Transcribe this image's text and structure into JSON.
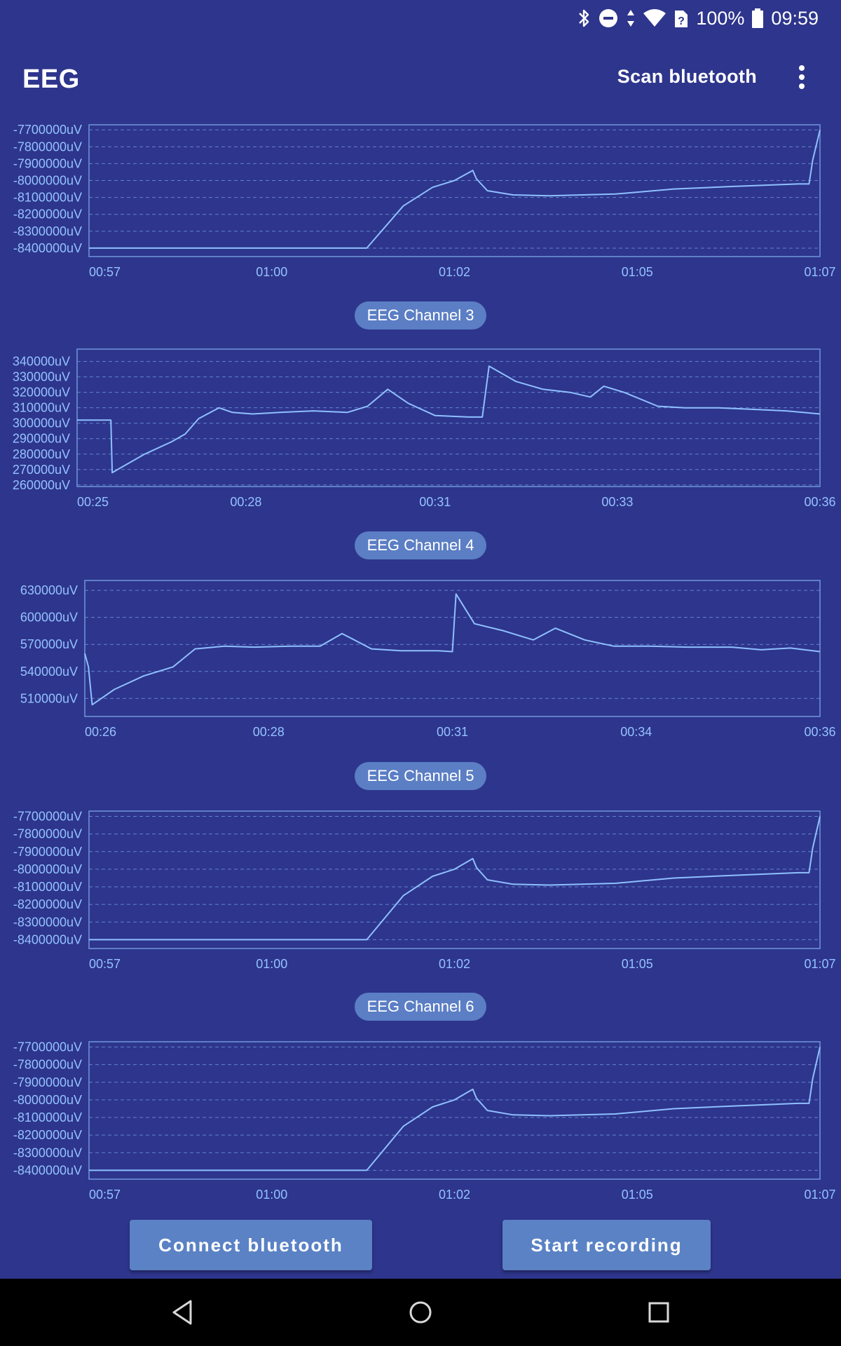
{
  "status_bar": {
    "battery_percent": "100%",
    "time": "09:59",
    "icons": [
      "bluetooth-icon",
      "do-not-disturb-icon",
      "data-arrows-icon",
      "wifi-icon",
      "sim-unknown-icon",
      "battery-full-icon"
    ]
  },
  "app_bar": {
    "title": "EEG",
    "scan_label": "Scan bluetooth",
    "overflow_icon": "more-vertical-icon"
  },
  "colors": {
    "background": "#2e358c",
    "chart_line": "#8ec0ff",
    "chip": "#5b7ec4",
    "button": "#5a82c5"
  },
  "chart_data": [
    {
      "type": "line",
      "title": "",
      "yunit": "uV",
      "ylim": [
        -8450000,
        -7670000
      ],
      "yticks": [
        -8400000,
        -8300000,
        -8200000,
        -8100000,
        -8000000,
        -7900000,
        -7800000,
        -7700000
      ],
      "ytick_labels": [
        "-8400000uV",
        "-8300000uV",
        "-8200000uV",
        "-8100000uV",
        "-8000000uV",
        "-7900000uV",
        "-7800000uV",
        "-7700000uV"
      ],
      "xlim": [
        57,
        67
      ],
      "xticks": [
        57,
        59.5,
        62,
        64.5,
        67
      ],
      "xtick_labels": [
        "00:57",
        "01:00",
        "01:02",
        "01:05",
        "01:07"
      ],
      "x": [
        57,
        58,
        59,
        60,
        60.8,
        61.3,
        61.7,
        62.0,
        62.25,
        62.3,
        62.45,
        62.8,
        63.3,
        64.2,
        65.0,
        65.8,
        66.7,
        66.85,
        66.9,
        67.0
      ],
      "y": [
        -8400000,
        -8400000,
        -8400000,
        -8400000,
        -8400000,
        -8150000,
        -8040000,
        -8000000,
        -7940000,
        -7990000,
        -8060000,
        -8085000,
        -8090000,
        -8080000,
        -8050000,
        -8035000,
        -8020000,
        -8020000,
        -7880000,
        -7700000
      ]
    },
    {
      "type": "line",
      "title": "EEG Channel 3",
      "yunit": "uV",
      "ylim": [
        259000,
        348000
      ],
      "yticks": [
        260000,
        270000,
        280000,
        290000,
        300000,
        310000,
        320000,
        330000,
        340000
      ],
      "ytick_labels": [
        "260000uV",
        "270000uV",
        "280000uV",
        "290000uV",
        "300000uV",
        "310000uV",
        "320000uV",
        "330000uV",
        "340000uV"
      ],
      "xlim": [
        25,
        36
      ],
      "xticks": [
        25,
        27.5,
        30.3,
        33,
        35.8
      ],
      "xtick_labels": [
        "00:25",
        "00:28",
        "00:31",
        "00:33",
        "00:36"
      ],
      "x": [
        25.0,
        25.5,
        25.52,
        25.6,
        26.0,
        26.4,
        26.6,
        26.8,
        27.1,
        27.3,
        27.6,
        28.0,
        28.5,
        29.0,
        29.3,
        29.6,
        29.9,
        30.3,
        30.8,
        31.0,
        31.1,
        31.5,
        31.9,
        32.3,
        32.6,
        32.8,
        33.1,
        33.6,
        34.0,
        34.5,
        35.0,
        35.5,
        36.0
      ],
      "y": [
        302000,
        302000,
        268000,
        270000,
        280000,
        288000,
        293000,
        303000,
        310000,
        307000,
        306000,
        307000,
        308000,
        307000,
        311000,
        322000,
        313000,
        305000,
        304000,
        304000,
        337000,
        327000,
        322000,
        320000,
        317000,
        324000,
        320000,
        311000,
        310000,
        310000,
        309000,
        308000,
        306000
      ]
    },
    {
      "type": "line",
      "title": "EEG Channel 4",
      "yunit": "uV",
      "ylim": [
        490000,
        641000
      ],
      "yticks": [
        510000,
        540000,
        570000,
        600000,
        630000
      ],
      "ytick_labels": [
        "510000uV",
        "540000uV",
        "570000uV",
        "600000uV",
        "630000uV"
      ],
      "xlim": [
        26,
        36
      ],
      "xticks": [
        26,
        28.5,
        31,
        33.5,
        36
      ],
      "xtick_labels": [
        "00:26",
        "00:28",
        "00:31",
        "00:34",
        "00:36"
      ],
      "x": [
        26.0,
        26.05,
        26.1,
        26.4,
        26.8,
        27.2,
        27.5,
        27.9,
        28.3,
        28.8,
        29.2,
        29.5,
        29.9,
        30.3,
        30.8,
        31.0,
        31.05,
        31.3,
        31.7,
        32.1,
        32.4,
        32.8,
        33.2,
        33.7,
        34.2,
        34.8,
        35.2,
        35.6,
        36.0
      ],
      "y": [
        560000,
        545000,
        503000,
        520000,
        535000,
        545000,
        565000,
        568000,
        567000,
        568000,
        568000,
        582000,
        565000,
        563000,
        563000,
        562000,
        626000,
        593000,
        585000,
        575000,
        588000,
        575000,
        568000,
        568000,
        567000,
        567000,
        564000,
        566000,
        562000
      ]
    },
    {
      "type": "line",
      "title": "EEG Channel 5",
      "yunit": "uV",
      "ylim": [
        -8450000,
        -7670000
      ],
      "yticks": [
        -8400000,
        -8300000,
        -8200000,
        -8100000,
        -8000000,
        -7900000,
        -7800000,
        -7700000
      ],
      "ytick_labels": [
        "-8400000uV",
        "-8300000uV",
        "-8200000uV",
        "-8100000uV",
        "-8000000uV",
        "-7900000uV",
        "-7800000uV",
        "-7700000uV"
      ],
      "xlim": [
        57,
        67
      ],
      "xticks": [
        57,
        59.5,
        62,
        64.5,
        67
      ],
      "xtick_labels": [
        "00:57",
        "01:00",
        "01:02",
        "01:05",
        "01:07"
      ],
      "x": [
        57,
        58,
        59,
        60,
        60.8,
        61.3,
        61.7,
        62.0,
        62.25,
        62.3,
        62.45,
        62.8,
        63.3,
        64.2,
        65.0,
        65.8,
        66.7,
        66.85,
        66.9,
        67.0
      ],
      "y": [
        -8400000,
        -8400000,
        -8400000,
        -8400000,
        -8400000,
        -8150000,
        -8040000,
        -8000000,
        -7940000,
        -7990000,
        -8060000,
        -8085000,
        -8090000,
        -8080000,
        -8050000,
        -8035000,
        -8020000,
        -8020000,
        -7880000,
        -7700000
      ]
    },
    {
      "type": "line",
      "title": "EEG Channel 6",
      "yunit": "uV",
      "ylim": [
        -8450000,
        -7670000
      ],
      "yticks": [
        -8400000,
        -8300000,
        -8200000,
        -8100000,
        -8000000,
        -7900000,
        -7800000,
        -7700000
      ],
      "ytick_labels": [
        "-8400000uV",
        "-8300000uV",
        "-8200000uV",
        "-8100000uV",
        "-8000000uV",
        "-7900000uV",
        "-7800000uV",
        "-7700000uV"
      ],
      "xlim": [
        57,
        67
      ],
      "xticks": [
        57,
        59.5,
        62,
        64.5,
        67
      ],
      "xtick_labels": [
        "00:57",
        "01:00",
        "01:02",
        "01:05",
        "01:07"
      ],
      "x": [
        57,
        58,
        59,
        60,
        60.8,
        61.3,
        61.7,
        62.0,
        62.25,
        62.3,
        62.45,
        62.8,
        63.3,
        64.2,
        65.0,
        65.8,
        66.7,
        66.85,
        66.9,
        67.0
      ],
      "y": [
        -8400000,
        -8400000,
        -8400000,
        -8400000,
        -8400000,
        -8150000,
        -8040000,
        -8000000,
        -7940000,
        -7990000,
        -8060000,
        -8085000,
        -8090000,
        -8080000,
        -8050000,
        -8035000,
        -8020000,
        -8020000,
        -7880000,
        -7700000
      ]
    }
  ],
  "buttons": {
    "connect_label": "Connect bluetooth",
    "record_label": "Start recording"
  },
  "nav_bar": {
    "icons": [
      "back-icon",
      "home-icon",
      "recents-icon"
    ]
  }
}
